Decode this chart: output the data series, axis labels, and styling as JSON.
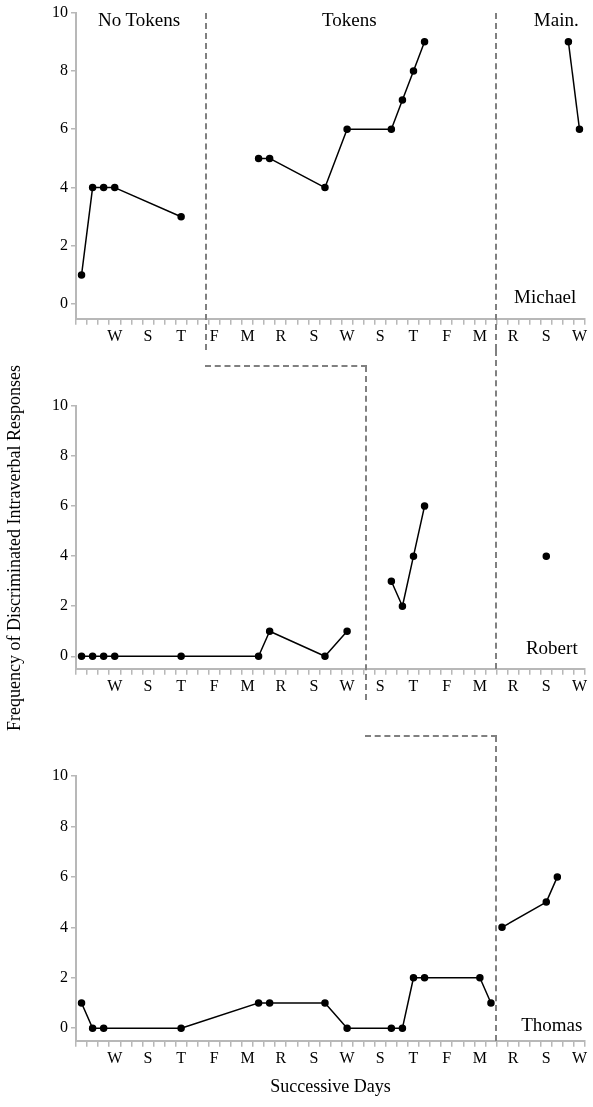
{
  "chart_data": [
    {
      "type": "line",
      "marker": "circle",
      "grid": false,
      "legend": false,
      "categories": [
        null,
        null,
        null,
        "W",
        null,
        null,
        "S",
        null,
        null,
        "T",
        null,
        null,
        "F",
        null,
        null,
        "M",
        null,
        null,
        "R",
        null,
        null,
        "S",
        null,
        null,
        "W",
        null,
        null,
        "S",
        null,
        null,
        "T",
        null,
        null,
        "F",
        null,
        null,
        "M",
        null,
        null,
        "R",
        null,
        null,
        "S",
        null,
        null,
        "W"
      ],
      "ylim": [
        -0.5,
        10
      ],
      "yticks": [
        0,
        2,
        4,
        6,
        8,
        10
      ],
      "series": [
        {
          "color": "#000000",
          "values": [
            1,
            4,
            4,
            4,
            null,
            null,
            null,
            null,
            null,
            3,
            null,
            null,
            null,
            null,
            null,
            null,
            null,
            null,
            null,
            null,
            null,
            null,
            null,
            null,
            null,
            null,
            null,
            null,
            null,
            null,
            null,
            null,
            null,
            null,
            null,
            null,
            null,
            null,
            null,
            null,
            null,
            null,
            null,
            null,
            null,
            null
          ]
        },
        {
          "color": "#000000",
          "values": [
            null,
            null,
            null,
            null,
            null,
            null,
            null,
            null,
            null,
            null,
            null,
            null,
            null,
            null,
            null,
            null,
            5,
            5,
            null,
            null,
            null,
            null,
            4,
            null,
            6,
            null,
            null,
            null,
            6,
            7,
            8,
            9,
            null,
            null,
            null,
            null,
            null,
            null,
            null,
            null,
            null,
            null,
            null,
            null,
            null,
            null
          ]
        },
        {
          "color": "#000000",
          "values": [
            null,
            null,
            null,
            null,
            null,
            null,
            null,
            null,
            null,
            null,
            null,
            null,
            null,
            null,
            null,
            null,
            null,
            null,
            null,
            null,
            null,
            null,
            null,
            null,
            null,
            null,
            null,
            null,
            null,
            null,
            null,
            null,
            null,
            null,
            null,
            null,
            null,
            null,
            null,
            null,
            null,
            null,
            null,
            null,
            9,
            6
          ]
        }
      ],
      "annotations": [
        "No Tokens",
        "Tokens",
        "Main.",
        "Michael"
      ]
    },
    {
      "type": "line",
      "marker": "circle",
      "grid": false,
      "legend": false,
      "ylabel": "Frequency of Discriminated Intraverbal Responses",
      "categories": [
        null,
        null,
        null,
        "W",
        null,
        null,
        "S",
        null,
        null,
        "T",
        null,
        null,
        "F",
        null,
        null,
        "M",
        null,
        null,
        "R",
        null,
        null,
        "S",
        null,
        null,
        "W",
        null,
        null,
        "S",
        null,
        null,
        "T",
        null,
        null,
        "F",
        null,
        null,
        "M",
        null,
        null,
        "R",
        null,
        null,
        "S",
        null,
        null,
        "W"
      ],
      "ylim": [
        -0.5,
        10
      ],
      "yticks": [
        0,
        2,
        4,
        6,
        8,
        10
      ],
      "series": [
        {
          "color": "#000000",
          "values": [
            0,
            0,
            0,
            0,
            null,
            null,
            null,
            null,
            null,
            0,
            null,
            null,
            null,
            null,
            null,
            null,
            0,
            1,
            null,
            null,
            null,
            null,
            0,
            null,
            1,
            null,
            null,
            null,
            null,
            null,
            null,
            null,
            null,
            null,
            null,
            null,
            null,
            null,
            null,
            null,
            null,
            null,
            null,
            null,
            null,
            null
          ]
        },
        {
          "color": "#000000",
          "values": [
            null,
            null,
            null,
            null,
            null,
            null,
            null,
            null,
            null,
            null,
            null,
            null,
            null,
            null,
            null,
            null,
            null,
            null,
            null,
            null,
            null,
            null,
            null,
            null,
            null,
            null,
            null,
            null,
            3,
            2,
            4,
            6,
            null,
            null,
            null,
            null,
            null,
            null,
            null,
            null,
            null,
            null,
            null,
            null,
            null,
            null
          ]
        },
        {
          "color": "#000000",
          "values": [
            null,
            null,
            null,
            null,
            null,
            null,
            null,
            null,
            null,
            null,
            null,
            null,
            null,
            null,
            null,
            null,
            null,
            null,
            null,
            null,
            null,
            null,
            null,
            null,
            null,
            null,
            null,
            null,
            null,
            null,
            null,
            null,
            null,
            null,
            null,
            null,
            null,
            null,
            null,
            null,
            null,
            null,
            4,
            null,
            null,
            null
          ]
        }
      ],
      "annotations": [
        "Robert"
      ]
    },
    {
      "type": "line",
      "marker": "circle",
      "grid": false,
      "legend": false,
      "xlabel": "Successive Days",
      "categories": [
        null,
        null,
        null,
        "W",
        null,
        null,
        "S",
        null,
        null,
        "T",
        null,
        null,
        "F",
        null,
        null,
        "M",
        null,
        null,
        "R",
        null,
        null,
        "S",
        null,
        null,
        "W",
        null,
        null,
        "S",
        null,
        null,
        "T",
        null,
        null,
        "F",
        null,
        null,
        "M",
        null,
        null,
        "R",
        null,
        null,
        "S",
        null,
        null,
        "W"
      ],
      "ylim": [
        -0.5,
        10
      ],
      "yticks": [
        0,
        2,
        4,
        6,
        8,
        10
      ],
      "series": [
        {
          "color": "#000000",
          "values": [
            1,
            0,
            0,
            null,
            null,
            null,
            null,
            null,
            null,
            0,
            null,
            null,
            null,
            null,
            null,
            null,
            1,
            1,
            null,
            null,
            null,
            null,
            1,
            null,
            0,
            null,
            null,
            null,
            0,
            0,
            2,
            2,
            null,
            null,
            null,
            null,
            2,
            1,
            null,
            null,
            null,
            null,
            null,
            null,
            null,
            null
          ]
        },
        {
          "color": "#000000",
          "values": [
            null,
            null,
            null,
            null,
            null,
            null,
            null,
            null,
            null,
            null,
            null,
            null,
            null,
            null,
            null,
            null,
            null,
            null,
            null,
            null,
            null,
            null,
            null,
            null,
            null,
            null,
            null,
            null,
            null,
            null,
            null,
            null,
            null,
            null,
            null,
            null,
            null,
            null,
            4,
            null,
            null,
            null,
            5,
            6,
            null,
            null
          ]
        }
      ],
      "annotations": [
        "Thomas"
      ]
    }
  ]
}
